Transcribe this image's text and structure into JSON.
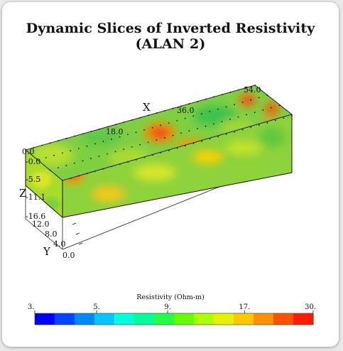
{
  "title": "Dynamic Slices of Inverted Resistivity (ALAN 2)",
  "chart_data": {
    "type": "3d-volume-slices",
    "title": "Dynamic Slices of Inverted Resistivity (ALAN 2)",
    "axes": {
      "x": {
        "label": "X",
        "ticks": [
          "0.0",
          "18.0",
          "36.0",
          "54.0"
        ],
        "range": [
          0,
          54
        ]
      },
      "y": {
        "label": "Y",
        "ticks": [
          "0.0",
          "4.0",
          "8.0",
          "12.0"
        ],
        "range": [
          0,
          12
        ]
      },
      "z": {
        "label": "Z",
        "ticks": [
          "-0.0",
          "-5.5",
          "-11.1",
          "-16.6"
        ],
        "range": [
          -16.6,
          0
        ]
      }
    },
    "colorbar": {
      "title": "Resistivity (Ohm-m)",
      "ticks": [
        "3.",
        "5.",
        "9.",
        "17.",
        "30."
      ],
      "range": [
        3,
        30
      ],
      "scale": "log",
      "colors": [
        "#0000ff",
        "#0044ff",
        "#0088ff",
        "#00c8ff",
        "#00ffdd",
        "#00ff99",
        "#22ff44",
        "#66ff00",
        "#aaff00",
        "#e8f000",
        "#ffc800",
        "#ff9000",
        "#ff5000",
        "#ff1a00"
      ]
    }
  }
}
